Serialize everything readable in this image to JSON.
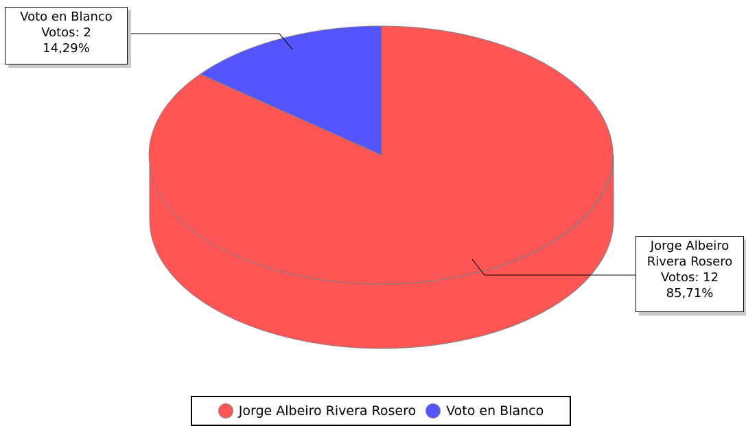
{
  "chart_data": {
    "type": "pie",
    "three_d": true,
    "series": [
      {
        "name": "Jorge Albeiro Rivera Rosero",
        "votes": 12,
        "percent": 85.71,
        "color": "#ff5555",
        "label": "Jorge Albeiro\nRivera Rosero\nVotos: 12\n 85,71%"
      },
      {
        "name": "Voto en Blanco",
        "votes": 2,
        "percent": 14.29,
        "color": "#5555ff",
        "label": "Voto en Blanco\nVotos: 2\n 14,29%"
      }
    ],
    "legend_placement": "bottom"
  },
  "legend": [
    {
      "label": "Jorge Albeiro Rivera Rosero",
      "color": "#ff5555"
    },
    {
      "label": "Voto en Blanco",
      "color": "#5555ff"
    }
  ]
}
